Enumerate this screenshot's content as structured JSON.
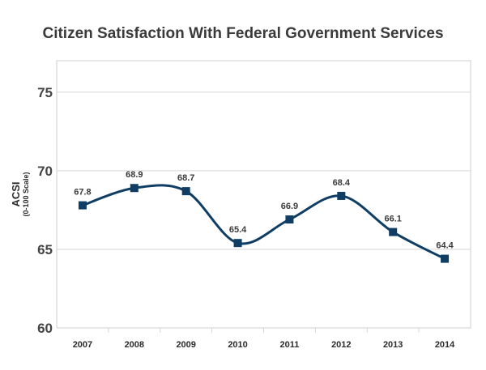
{
  "chart_data": {
    "type": "line",
    "title": "Citizen Satisfaction With Federal Government Services",
    "ylabel": "ACSI",
    "ylabel_sub": "(0-100 Scale)",
    "xlabel": "",
    "categories": [
      "2007",
      "2008",
      "2009",
      "2010",
      "2011",
      "2012",
      "2013",
      "2014"
    ],
    "values": [
      67.8,
      68.9,
      68.7,
      65.4,
      66.9,
      68.4,
      66.1,
      64.4
    ],
    "data_labels": [
      "67.8",
      "68.9",
      "68.7",
      "65.4",
      "66.9",
      "68.4",
      "66.1",
      "64.4"
    ],
    "ylim": [
      60,
      77
    ],
    "yticks": [
      60,
      65,
      70,
      75
    ],
    "grid": true,
    "smooth": true,
    "marker": "square",
    "line_color": "#0f3d63"
  }
}
